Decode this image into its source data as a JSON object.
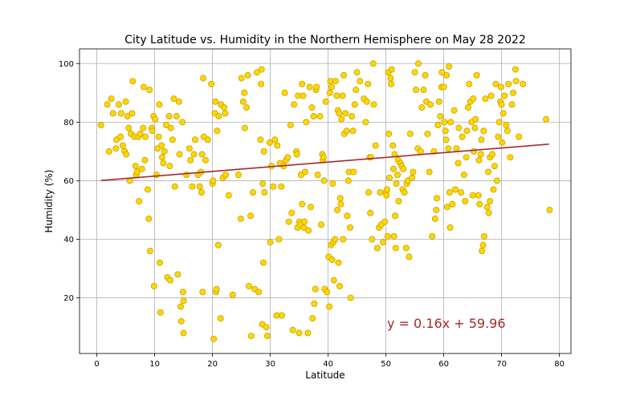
{
  "chart_data": {
    "type": "scatter",
    "title": "City Latitude vs. Humidity in the Northern Hemisphere on  May 28 2022",
    "xlabel": "Latitude",
    "ylabel": "Humidity (%)",
    "xlim": [
      -3,
      82
    ],
    "ylim": [
      1,
      105
    ],
    "xticks": [
      0,
      10,
      20,
      30,
      40,
      50,
      60,
      70,
      80
    ],
    "yticks": [
      20,
      40,
      60,
      80,
      100
    ],
    "grid": true,
    "colors": {
      "marker_fill": "#FFD700",
      "marker_edge": "#C8A000",
      "regression": "#A52A2A",
      "grid": "#b0b0b0"
    },
    "regression": {
      "slope": 0.16,
      "intercept": 59.96,
      "x_range": [
        0.7,
        78.2
      ],
      "equation_label": "y = 0.16x + 59.96"
    },
    "points": [
      [
        0.7,
        79
      ],
      [
        1.8,
        86
      ],
      [
        2.1,
        70
      ],
      [
        2.5,
        88
      ],
      [
        2.8,
        83
      ],
      [
        3.3,
        71
      ],
      [
        3.4,
        74
      ],
      [
        3.8,
        86
      ],
      [
        4.1,
        75
      ],
      [
        4.2,
        83
      ],
      [
        4.5,
        72
      ],
      [
        4.8,
        70
      ],
      [
        5,
        87
      ],
      [
        5.1,
        69
      ],
      [
        5.3,
        82
      ],
      [
        5.5,
        78
      ],
      [
        5.7,
        60
      ],
      [
        5.9,
        76
      ],
      [
        6.1,
        83
      ],
      [
        6.2,
        94
      ],
      [
        6.5,
        75
      ],
      [
        6.7,
        65
      ],
      [
        6.8,
        62
      ],
      [
        7,
        63
      ],
      [
        7.2,
        75
      ],
      [
        7.3,
        53
      ],
      [
        7.5,
        76
      ],
      [
        7.8,
        64
      ],
      [
        8,
        78
      ],
      [
        8.1,
        92
      ],
      [
        8.3,
        67
      ],
      [
        8.4,
        75
      ],
      [
        8.8,
        57
      ],
      [
        9,
        47
      ],
      [
        9.1,
        91
      ],
      [
        9.2,
        36
      ],
      [
        9.5,
        78
      ],
      [
        9.6,
        77
      ],
      [
        9.8,
        82
      ],
      [
        9.9,
        24
      ],
      [
        10.1,
        81
      ],
      [
        10.3,
        62
      ],
      [
        10.5,
        71
      ],
      [
        10.7,
        75
      ],
      [
        10.8,
        86
      ],
      [
        10.9,
        32
      ],
      [
        11,
        15
      ],
      [
        11.2,
        72
      ],
      [
        11.3,
        68
      ],
      [
        11.5,
        66
      ],
      [
        11.7,
        70
      ],
      [
        12,
        79
      ],
      [
        12.2,
        27
      ],
      [
        12.5,
        82
      ],
      [
        12.6,
        65
      ],
      [
        12.7,
        26
      ],
      [
        12.8,
        78
      ],
      [
        13.1,
        74
      ],
      [
        13.3,
        88
      ],
      [
        13.5,
        58
      ],
      [
        13.8,
        82
      ],
      [
        14,
        28
      ],
      [
        14.2,
        87
      ],
      [
        14.3,
        69
      ],
      [
        14.5,
        17
      ],
      [
        14.6,
        12
      ],
      [
        14.8,
        80
      ],
      [
        14.9,
        22
      ],
      [
        15,
        8
      ],
      [
        15,
        19
      ],
      [
        15.5,
        62
      ],
      [
        16,
        71
      ],
      [
        16.2,
        67
      ],
      [
        16.5,
        58
      ],
      [
        16.8,
        69
      ],
      [
        17,
        74
      ],
      [
        17.5,
        62
      ],
      [
        17.8,
        58
      ],
      [
        18,
        63
      ],
      [
        18.1,
        56
      ],
      [
        18.2,
        69
      ],
      [
        18.3,
        22
      ],
      [
        18.4,
        95
      ],
      [
        18.5,
        75
      ],
      [
        18.8,
        67
      ],
      [
        19.2,
        74
      ],
      [
        19.8,
        93
      ],
      [
        20,
        59
      ],
      [
        20.1,
        60
      ],
      [
        20.2,
        6
      ],
      [
        20.4,
        83
      ],
      [
        20.5,
        87
      ],
      [
        20.6,
        22
      ],
      [
        20.7,
        23
      ],
      [
        20.8,
        77
      ],
      [
        21,
        38
      ],
      [
        21.1,
        82
      ],
      [
        21.4,
        13
      ],
      [
        21.5,
        86
      ],
      [
        21.8,
        61
      ],
      [
        22,
        85
      ],
      [
        22.2,
        83
      ],
      [
        22.3,
        62
      ],
      [
        22.8,
        55
      ],
      [
        23.5,
        21
      ],
      [
        24.5,
        62
      ],
      [
        24.9,
        47
      ],
      [
        25,
        95
      ],
      [
        25.3,
        87
      ],
      [
        25.5,
        90
      ],
      [
        25.6,
        78
      ],
      [
        25.9,
        85
      ],
      [
        26.1,
        96
      ],
      [
        26.3,
        24
      ],
      [
        26.6,
        48
      ],
      [
        26.7,
        7
      ],
      [
        27,
        56
      ],
      [
        27.3,
        23
      ],
      [
        27.7,
        97
      ],
      [
        28,
        22
      ],
      [
        28.3,
        74
      ],
      [
        28.4,
        93
      ],
      [
        28.5,
        98
      ],
      [
        28.6,
        11
      ],
      [
        28.7,
        59
      ],
      [
        28.8,
        32
      ],
      [
        28.9,
        70
      ],
      [
        29,
        56
      ],
      [
        29.3,
        10
      ],
      [
        29.5,
        7
      ],
      [
        29.9,
        73
      ],
      [
        30,
        39
      ],
      [
        30.2,
        65
      ],
      [
        30.5,
        58
      ],
      [
        30.8,
        74
      ],
      [
        31.1,
        14
      ],
      [
        31.2,
        72
      ],
      [
        31.5,
        40
      ],
      [
        31.7,
        66
      ],
      [
        31.9,
        58
      ],
      [
        32,
        14
      ],
      [
        32.3,
        65
      ],
      [
        32.5,
        90
      ],
      [
        32.7,
        67
      ],
      [
        33,
        68
      ],
      [
        33.2,
        46
      ],
      [
        33.5,
        79
      ],
      [
        33.7,
        49
      ],
      [
        33.9,
        9
      ],
      [
        34.1,
        86
      ],
      [
        34.5,
        70
      ],
      [
        34.6,
        69
      ],
      [
        34.7,
        44
      ],
      [
        34.8,
        89
      ],
      [
        35,
        8
      ],
      [
        35,
        46
      ],
      [
        35.2,
        45
      ],
      [
        35.3,
        62
      ],
      [
        35.5,
        93
      ],
      [
        35.5,
        52
      ],
      [
        35.7,
        89
      ],
      [
        35.8,
        44
      ],
      [
        35.9,
        46
      ],
      [
        36,
        63
      ],
      [
        36.2,
        80
      ],
      [
        36.5,
        8
      ],
      [
        36.6,
        43
      ],
      [
        36.8,
        92
      ],
      [
        37,
        51
      ],
      [
        37.2,
        85
      ],
      [
        37.3,
        13
      ],
      [
        37.5,
        82
      ],
      [
        37.6,
        18
      ],
      [
        37.8,
        23
      ],
      [
        37.9,
        91
      ],
      [
        38,
        92
      ],
      [
        38.2,
        62
      ],
      [
        38.6,
        82
      ],
      [
        38.8,
        45
      ],
      [
        39,
        69
      ],
      [
        39.1,
        67
      ],
      [
        39.2,
        68
      ],
      [
        39.3,
        60
      ],
      [
        39.4,
        23
      ],
      [
        39.6,
        87
      ],
      [
        39.8,
        22
      ],
      [
        40.1,
        34
      ],
      [
        40.2,
        17
      ],
      [
        40.3,
        90
      ],
      [
        40.4,
        94
      ],
      [
        40.5,
        38
      ],
      [
        40.6,
        92
      ],
      [
        40.7,
        33
      ],
      [
        40.8,
        59
      ],
      [
        40.9,
        39
      ],
      [
        41,
        26
      ],
      [
        41.2,
        40
      ],
      [
        41.3,
        94
      ],
      [
        41.5,
        89
      ],
      [
        41.6,
        50
      ],
      [
        41.7,
        84
      ],
      [
        41.8,
        32
      ],
      [
        41.9,
        83
      ],
      [
        42,
        24
      ],
      [
        42.1,
        54
      ],
      [
        42.2,
        52
      ],
      [
        42.3,
        81
      ],
      [
        42.5,
        89
      ],
      [
        42.6,
        40
      ],
      [
        42.7,
        96
      ],
      [
        42.8,
        76
      ],
      [
        43,
        83
      ],
      [
        43.2,
        77
      ],
      [
        43.3,
        48
      ],
      [
        43.5,
        60
      ],
      [
        43.6,
        63
      ],
      [
        43.8,
        44
      ],
      [
        43.9,
        20
      ],
      [
        44.1,
        82
      ],
      [
        44.3,
        77
      ],
      [
        44.4,
        63
      ],
      [
        44.6,
        86
      ],
      [
        44.8,
        91
      ],
      [
        45,
        97
      ],
      [
        45.5,
        94
      ],
      [
        46.2,
        88
      ],
      [
        46.5,
        80
      ],
      [
        46.7,
        87
      ],
      [
        46.9,
        93
      ],
      [
        47,
        56
      ],
      [
        47.2,
        68
      ],
      [
        47.3,
        49
      ],
      [
        47.4,
        68
      ],
      [
        47.6,
        40
      ],
      [
        47.8,
        100
      ],
      [
        47.9,
        86
      ],
      [
        48.2,
        72
      ],
      [
        48.5,
        37
      ],
      [
        48.8,
        44
      ],
      [
        49,
        56
      ],
      [
        49.2,
        45
      ],
      [
        49.5,
        39
      ],
      [
        49.8,
        46
      ],
      [
        50,
        56
      ],
      [
        50.1,
        55
      ],
      [
        50.2,
        57
      ],
      [
        50.3,
        41
      ],
      [
        50.4,
        97
      ],
      [
        50.5,
        76
      ],
      [
        50.6,
        61
      ],
      [
        50.8,
        95
      ],
      [
        50.9,
        93
      ],
      [
        51,
        98
      ],
      [
        51.2,
        72
      ],
      [
        51.3,
        64
      ],
      [
        51.4,
        41
      ],
      [
        51.5,
        69
      ],
      [
        51.6,
        48
      ],
      [
        51.7,
        37
      ],
      [
        51.8,
        59
      ],
      [
        52,
        62
      ],
      [
        52.1,
        67
      ],
      [
        52.2,
        53
      ],
      [
        52.5,
        66
      ],
      [
        52.7,
        65
      ],
      [
        52.9,
        57
      ],
      [
        53,
        64
      ],
      [
        53.2,
        56
      ],
      [
        53.5,
        37
      ],
      [
        53.6,
        59
      ],
      [
        53.8,
        60
      ],
      [
        54,
        34
      ],
      [
        54.2,
        76
      ],
      [
        54.5,
        61
      ],
      [
        54.7,
        63
      ],
      [
        55,
        97
      ],
      [
        55.2,
        91
      ],
      [
        55.5,
        71
      ],
      [
        55.6,
        100
      ],
      [
        56,
        70
      ],
      [
        56.2,
        85
      ],
      [
        56.5,
        91
      ],
      [
        56.8,
        96
      ],
      [
        57,
        87
      ],
      [
        57.2,
        76
      ],
      [
        57.5,
        63
      ],
      [
        57.7,
        86
      ],
      [
        58,
        41
      ],
      [
        58.3,
        70
      ],
      [
        58.5,
        47
      ],
      [
        58.7,
        50
      ],
      [
        58.8,
        54
      ],
      [
        59,
        79
      ],
      [
        59.2,
        87
      ],
      [
        59.4,
        82
      ],
      [
        59.6,
        92
      ],
      [
        59.7,
        97
      ],
      [
        60,
        92
      ],
      [
        60.1,
        80
      ],
      [
        60.3,
        77
      ],
      [
        60.4,
        74
      ],
      [
        60.5,
        96
      ],
      [
        60.6,
        51
      ],
      [
        60.8,
        71
      ],
      [
        60.9,
        99
      ],
      [
        61,
        56
      ],
      [
        61.1,
        44
      ],
      [
        61.2,
        80
      ],
      [
        61.5,
        52
      ],
      [
        61.8,
        84
      ],
      [
        62,
        57
      ],
      [
        62.2,
        71
      ],
      [
        62.5,
        66
      ],
      [
        62.6,
        78
      ],
      [
        63,
        56
      ],
      [
        63.2,
        75
      ],
      [
        63.5,
        62
      ],
      [
        63.7,
        53
      ],
      [
        63.9,
        68
      ],
      [
        64,
        77
      ],
      [
        64.2,
        85
      ],
      [
        64.4,
        93
      ],
      [
        64.6,
        87
      ],
      [
        64.8,
        80
      ],
      [
        65,
        55
      ],
      [
        65.1,
        88
      ],
      [
        65.2,
        70
      ],
      [
        65.4,
        78
      ],
      [
        65.5,
        81
      ],
      [
        65.7,
        96
      ],
      [
        66,
        55
      ],
      [
        66.1,
        67
      ],
      [
        66.2,
        52
      ],
      [
        66.4,
        69
      ],
      [
        66.5,
        74
      ],
      [
        66.6,
        36
      ],
      [
        66.8,
        38
      ],
      [
        66.9,
        77
      ],
      [
        67,
        41
      ],
      [
        67.2,
        88
      ],
      [
        67.5,
        51
      ],
      [
        67.7,
        63
      ],
      [
        67.8,
        49
      ],
      [
        68,
        68
      ],
      [
        68,
        53
      ],
      [
        68.2,
        89
      ],
      [
        68.4,
        69
      ],
      [
        68.6,
        57
      ],
      [
        68.8,
        65
      ],
      [
        69,
        93
      ],
      [
        69.2,
        60
      ],
      [
        69.4,
        75
      ],
      [
        69.6,
        80
      ],
      [
        69.8,
        87
      ],
      [
        69.9,
        92
      ],
      [
        70,
        86
      ],
      [
        70.1,
        73
      ],
      [
        70.3,
        83
      ],
      [
        70.5,
        89
      ],
      [
        70.8,
        79
      ],
      [
        71,
        77
      ],
      [
        71.2,
        93
      ],
      [
        71.5,
        68
      ],
      [
        71.8,
        86
      ],
      [
        72,
        90
      ],
      [
        72.4,
        98
      ],
      [
        72.5,
        94
      ],
      [
        73,
        75
      ],
      [
        73.7,
        93
      ],
      [
        77.7,
        81
      ],
      [
        78.3,
        50
      ]
    ]
  }
}
